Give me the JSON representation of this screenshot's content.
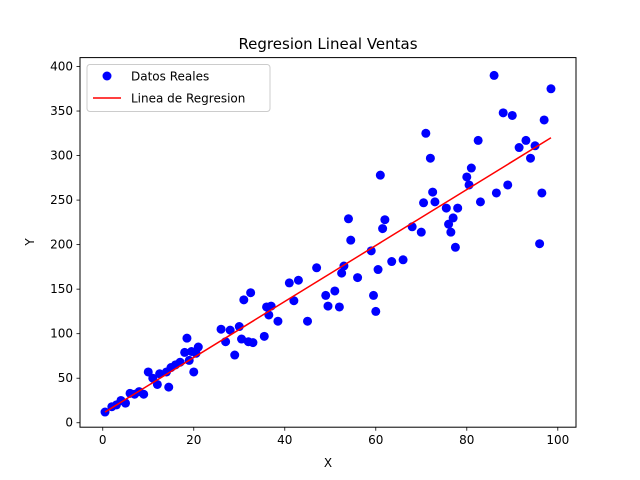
{
  "chart_data": {
    "type": "scatter",
    "title": "Regresion Lineal Ventas",
    "xlabel": "X",
    "ylabel": "Y",
    "xlim": [
      -5,
      104
    ],
    "ylim": [
      -5,
      410
    ],
    "xticks": [
      0,
      20,
      40,
      60,
      80,
      100
    ],
    "yticks": [
      0,
      50,
      100,
      150,
      200,
      250,
      300,
      350,
      400
    ],
    "grid": false,
    "legend_position": "top-left",
    "series": [
      {
        "name": "Datos Reales",
        "kind": "scatter",
        "color": "#0000ff",
        "points": [
          [
            0.5,
            12
          ],
          [
            2,
            18
          ],
          [
            3,
            20
          ],
          [
            4,
            25
          ],
          [
            5,
            22
          ],
          [
            6,
            33
          ],
          [
            7,
            32
          ],
          [
            8,
            35
          ],
          [
            9,
            32
          ],
          [
            10,
            57
          ],
          [
            11,
            50
          ],
          [
            12,
            43
          ],
          [
            12.5,
            55
          ],
          [
            14,
            57
          ],
          [
            14.5,
            40
          ],
          [
            15,
            62
          ],
          [
            16,
            65
          ],
          [
            17,
            68
          ],
          [
            18,
            79
          ],
          [
            18.5,
            95
          ],
          [
            19,
            70
          ],
          [
            19.5,
            80
          ],
          [
            20,
            57
          ],
          [
            20.5,
            78
          ],
          [
            21,
            85
          ],
          [
            26,
            105
          ],
          [
            27,
            91
          ],
          [
            28,
            104
          ],
          [
            29,
            76
          ],
          [
            30,
            108
          ],
          [
            30.5,
            94
          ],
          [
            31,
            138
          ],
          [
            32,
            91
          ],
          [
            32.5,
            146
          ],
          [
            33,
            90
          ],
          [
            35.5,
            97
          ],
          [
            36,
            130
          ],
          [
            36.5,
            121
          ],
          [
            37,
            131
          ],
          [
            38.5,
            114
          ],
          [
            41,
            157
          ],
          [
            42,
            137
          ],
          [
            43,
            160
          ],
          [
            45,
            114
          ],
          [
            47,
            174
          ],
          [
            49,
            143
          ],
          [
            49.5,
            131
          ],
          [
            51,
            148
          ],
          [
            52,
            130
          ],
          [
            52.5,
            168
          ],
          [
            53,
            176
          ],
          [
            54,
            229
          ],
          [
            54.5,
            205
          ],
          [
            56,
            163
          ],
          [
            59,
            193
          ],
          [
            59.5,
            143
          ],
          [
            60,
            125
          ],
          [
            60.5,
            172
          ],
          [
            61,
            278
          ],
          [
            61.5,
            218
          ],
          [
            62,
            228
          ],
          [
            63.5,
            181
          ],
          [
            66,
            183
          ],
          [
            68,
            220
          ],
          [
            70,
            214
          ],
          [
            70.5,
            247
          ],
          [
            71,
            325
          ],
          [
            72,
            297
          ],
          [
            72.5,
            259
          ],
          [
            73,
            248
          ],
          [
            75.5,
            241
          ],
          [
            76,
            223
          ],
          [
            76.5,
            214
          ],
          [
            77,
            230
          ],
          [
            77.5,
            197
          ],
          [
            78,
            241
          ],
          [
            80,
            276
          ],
          [
            80.5,
            267
          ],
          [
            81,
            286
          ],
          [
            82.5,
            317
          ],
          [
            83,
            248
          ],
          [
            86,
            390
          ],
          [
            86.5,
            258
          ],
          [
            88,
            348
          ],
          [
            89,
            267
          ],
          [
            90,
            345
          ],
          [
            91.5,
            309
          ],
          [
            93,
            317
          ],
          [
            94,
            297
          ],
          [
            95,
            311
          ],
          [
            96,
            201
          ],
          [
            96.5,
            258
          ],
          [
            97,
            340
          ],
          [
            98.5,
            375
          ]
        ]
      },
      {
        "name": "Linea de Regresion",
        "kind": "line",
        "color": "#ff0000",
        "x": [
          0.5,
          98.5
        ],
        "y": [
          12,
          320
        ]
      }
    ]
  }
}
